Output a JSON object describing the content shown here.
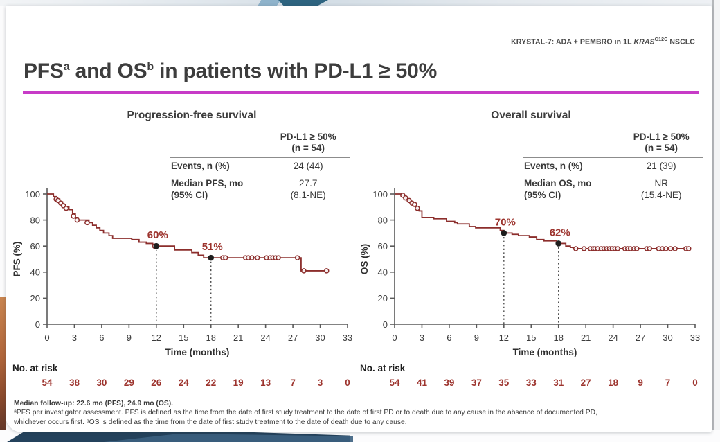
{
  "slide": {
    "eyebrow": {
      "prefix": "KRYSTAL-7: ADA + PEMBRO in 1L ",
      "gene": "KRAS",
      "gene_sup": "G12C",
      "suffix": " NSCLC"
    },
    "title": {
      "t1": "PFS",
      "sup1": "a",
      "t2": " and OS",
      "sup2": "b",
      "t3": " in patients with PD-L1 ≥ 50%"
    },
    "accent_color": "#c73bc7"
  },
  "style": {
    "curve_color": "#8c2e2c",
    "red_text_color": "#9d342e",
    "axis_color": "#5a5a5a",
    "dashed_line_color": "#4d4d4d",
    "dot_color": "#1e1e1e"
  },
  "panels": [
    {
      "heading": "Progression-free survival",
      "table": {
        "header_line1": "PD-L1 ≥ 50%",
        "header_line2": "(n = 54)",
        "rows": [
          {
            "label": "Events, n (%)",
            "value": "24 (44)"
          },
          {
            "label": "Median PFS, mo",
            "label2": "(95% CI)",
            "value": "27.7",
            "value2": "(8.1-NE)"
          }
        ]
      }
    },
    {
      "heading": "Overall survival",
      "table": {
        "header_line1": "PD-L1 ≥ 50%",
        "header_line2": "(n = 54)",
        "rows": [
          {
            "label": "Events, n (%)",
            "value": "21 (39)"
          },
          {
            "label": "Median OS, mo",
            "label2": "(95% CI)",
            "value": "NR",
            "value2": "(15.4-NE)"
          }
        ]
      }
    }
  ],
  "chart_data": [
    {
      "type": "line",
      "subtype": "kaplan-meier-step",
      "title": "Progression-free survival",
      "xlabel": "Time (months)",
      "ylabel": "PFS (%)",
      "xlim": [
        0,
        33
      ],
      "ylim": [
        0,
        100
      ],
      "x_ticks": [
        0,
        3,
        6,
        9,
        12,
        15,
        18,
        21,
        24,
        27,
        30,
        33
      ],
      "y_ticks": [
        0,
        20,
        40,
        60,
        80,
        100
      ],
      "grid": false,
      "series": [
        {
          "name": "PD-L1 ≥ 50% (n = 54)",
          "color": "#8c2e2c",
          "steps": [
            [
              0,
              100
            ],
            [
              0.7,
              98
            ],
            [
              1.0,
              96
            ],
            [
              1.4,
              94
            ],
            [
              1.7,
              92
            ],
            [
              2.0,
              90
            ],
            [
              2.4,
              88
            ],
            [
              2.8,
              85
            ],
            [
              3.1,
              82
            ],
            [
              3.4,
              80
            ],
            [
              4.6,
              78
            ],
            [
              5.0,
              76
            ],
            [
              5.4,
              74
            ],
            [
              5.8,
              72
            ],
            [
              6.2,
              70
            ],
            [
              6.8,
              68
            ],
            [
              7.2,
              66
            ],
            [
              9.3,
              65
            ],
            [
              10.1,
              63
            ],
            [
              10.9,
              62
            ],
            [
              11.6,
              60
            ],
            [
              14.0,
              57
            ],
            [
              15.9,
              55
            ],
            [
              16.6,
              53
            ],
            [
              17.2,
              51
            ],
            [
              27.9,
              41
            ]
          ],
          "end_x": 30.7,
          "censors": [
            [
              1.0,
              96
            ],
            [
              1.2,
              95
            ],
            [
              1.5,
              93
            ],
            [
              1.8,
              91
            ],
            [
              2.1,
              89
            ],
            [
              2.9,
              83
            ],
            [
              3.3,
              80
            ],
            [
              4.4,
              78
            ],
            [
              11.8,
              60
            ],
            [
              19.3,
              51
            ],
            [
              19.6,
              51
            ],
            [
              21.8,
              51
            ],
            [
              22.1,
              51
            ],
            [
              22.5,
              51
            ],
            [
              23.1,
              51
            ],
            [
              24.1,
              51
            ],
            [
              24.5,
              51
            ],
            [
              24.8,
              51
            ],
            [
              25.1,
              51
            ],
            [
              25.4,
              51
            ],
            [
              27.5,
              51
            ],
            [
              28.2,
              41
            ],
            [
              30.7,
              41
            ]
          ]
        }
      ],
      "annotations": [
        {
          "x": 12,
          "y": 60,
          "label": "60%"
        },
        {
          "x": 18,
          "y": 51,
          "label": "51%"
        }
      ],
      "at_risk": {
        "label": "No. at risk",
        "values": [
          54,
          38,
          30,
          29,
          26,
          24,
          22,
          19,
          13,
          7,
          3,
          0
        ]
      }
    },
    {
      "type": "line",
      "subtype": "kaplan-meier-step",
      "title": "Overall survival",
      "xlabel": "Time (months)",
      "ylabel": "OS (%)",
      "xlim": [
        0,
        33
      ],
      "ylim": [
        0,
        100
      ],
      "x_ticks": [
        0,
        3,
        6,
        9,
        12,
        15,
        18,
        21,
        24,
        27,
        30,
        33
      ],
      "y_ticks": [
        0,
        20,
        40,
        60,
        80,
        100
      ],
      "grid": false,
      "series": [
        {
          "name": "PD-L1 ≥ 50% (n = 54)",
          "color": "#8c2e2c",
          "steps": [
            [
              0,
              100
            ],
            [
              0.8,
              99
            ],
            [
              1.1,
              97
            ],
            [
              1.4,
              95
            ],
            [
              1.7,
              93
            ],
            [
              2.0,
              91
            ],
            [
              2.4,
              89
            ],
            [
              2.7,
              87
            ],
            [
              3.0,
              82
            ],
            [
              4.3,
              81
            ],
            [
              5.7,
              79
            ],
            [
              6.6,
              78
            ],
            [
              6.9,
              77
            ],
            [
              8.2,
              75
            ],
            [
              8.9,
              74
            ],
            [
              11.6,
              72
            ],
            [
              12.0,
              70
            ],
            [
              12.9,
              69
            ],
            [
              13.6,
              68
            ],
            [
              14.8,
              67
            ],
            [
              15.6,
              65
            ],
            [
              16.4,
              64
            ],
            [
              17.8,
              63
            ],
            [
              18.0,
              62
            ],
            [
              18.8,
              60
            ],
            [
              19.3,
              59
            ],
            [
              19.6,
              58
            ]
          ],
          "end_x": 32.4,
          "censors": [
            [
              0.9,
              99
            ],
            [
              1.2,
              97
            ],
            [
              1.6,
              95
            ],
            [
              1.9,
              93
            ],
            [
              2.2,
              92
            ],
            [
              2.5,
              89
            ],
            [
              19.9,
              58
            ],
            [
              20.8,
              58
            ],
            [
              21.5,
              58
            ],
            [
              21.8,
              58
            ],
            [
              22.0,
              58
            ],
            [
              22.3,
              58
            ],
            [
              22.7,
              58
            ],
            [
              23.0,
              58
            ],
            [
              23.3,
              58
            ],
            [
              23.6,
              58
            ],
            [
              23.9,
              58
            ],
            [
              24.2,
              58
            ],
            [
              24.5,
              58
            ],
            [
              25.3,
              58
            ],
            [
              25.6,
              58
            ],
            [
              25.9,
              58
            ],
            [
              26.3,
              58
            ],
            [
              26.6,
              58
            ],
            [
              27.7,
              58
            ],
            [
              28.0,
              58
            ],
            [
              29.0,
              58
            ],
            [
              29.4,
              58
            ],
            [
              29.8,
              58
            ],
            [
              30.3,
              58
            ],
            [
              30.8,
              58
            ],
            [
              32.0,
              58
            ],
            [
              32.3,
              58
            ]
          ]
        }
      ],
      "annotations": [
        {
          "x": 12,
          "y": 70,
          "label": "70%"
        },
        {
          "x": 18,
          "y": 62,
          "label": "62%"
        }
      ],
      "at_risk": {
        "label": "No. at risk",
        "values": [
          54,
          41,
          39,
          37,
          35,
          33,
          31,
          27,
          18,
          9,
          7,
          0
        ]
      }
    }
  ],
  "footnotes": {
    "line1": "Median follow-up: 22.6 mo (PFS), 24.9 mo (OS).",
    "line2": "ᵃPFS per investigator assessment. PFS is defined as the time from the date of first study treatment to the date of first PD or to death due to any cause in the absence of documented PD,",
    "line3": "whichever occurs first. ᵇOS is defined as the time from the date of first study treatment to the date of death due to any cause."
  }
}
